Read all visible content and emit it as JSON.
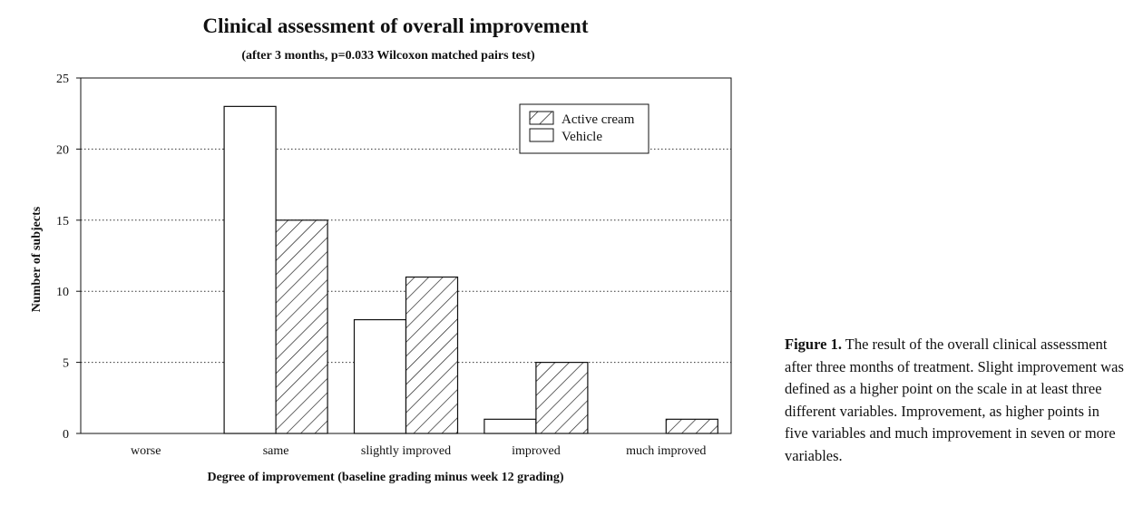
{
  "chart_data": {
    "type": "bar",
    "title": "Clinical assessment of overall improvement",
    "subtitle": "(after 3 months, p=0.033 Wilcoxon matched pairs test)",
    "xlabel": "Degree of improvement (baseline grading minus week 12 grading)",
    "ylabel": "Number of subjects",
    "ylim": [
      0,
      25
    ],
    "yticks": [
      0,
      5,
      10,
      15,
      20,
      25
    ],
    "grid": "horizontal dotted",
    "legend_position": "top-right",
    "categories": [
      "worse",
      "same",
      "slightly improved",
      "improved",
      "much improved"
    ],
    "series": [
      {
        "name": "Vehicle",
        "values": [
          0,
          23,
          8,
          1,
          0
        ],
        "fill": "#ffffff",
        "pattern": "none"
      },
      {
        "name": "Active cream",
        "values": [
          0,
          15,
          11,
          5,
          1
        ],
        "fill": "#ffffff",
        "pattern": "diagonal-hatch"
      }
    ],
    "legend_order": [
      "Active cream",
      "Vehicle"
    ]
  },
  "caption": {
    "label": "Figure 1.",
    "text": "The result of the overall clinical assessment after three months of treatment. Slight improvement was defined as a higher point on the scale in at least three different variables. Improvement, as higher points in five variables and much improvement in seven or more variables."
  }
}
